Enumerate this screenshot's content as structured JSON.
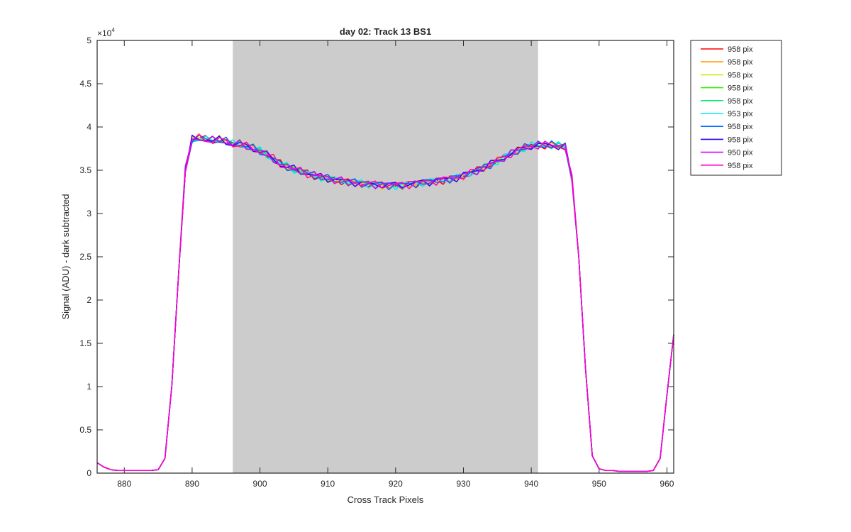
{
  "chart_data": {
    "type": "line",
    "title": "day 02: Track 13  BS1",
    "xlabel": "Cross Track Pixels",
    "ylabel": "Signal (ADU) - dark subtracted",
    "y_multiplier_label": "×10",
    "y_multiplier_exponent": "4",
    "xlim": [
      876,
      961
    ],
    "ylim": [
      0,
      5
    ],
    "x_ticks": [
      880,
      890,
      900,
      910,
      920,
      930,
      940,
      950,
      960
    ],
    "y_ticks": [
      0,
      0.5,
      1,
      1.5,
      2,
      2.5,
      3,
      3.5,
      4,
      4.5,
      5
    ],
    "y_tick_labels": [
      "0",
      "0.5",
      "1",
      "1.5",
      "2",
      "2.5",
      "3",
      "3.5",
      "4",
      "4.5",
      "5"
    ],
    "shaded_region": {
      "x_start": 896,
      "x_end": 941,
      "color": "#cccccc"
    },
    "legend_position": "outside-top-right",
    "x": [
      876,
      877,
      878,
      879,
      880,
      881,
      882,
      883,
      884,
      885,
      886,
      887,
      888,
      889,
      890,
      891,
      892,
      893,
      894,
      895,
      896,
      897,
      898,
      899,
      900,
      901,
      902,
      903,
      904,
      905,
      906,
      907,
      908,
      909,
      910,
      911,
      912,
      913,
      914,
      915,
      916,
      917,
      918,
      919,
      920,
      921,
      922,
      923,
      924,
      925,
      926,
      927,
      928,
      929,
      930,
      931,
      932,
      933,
      934,
      935,
      936,
      937,
      938,
      939,
      940,
      941,
      942,
      943,
      944,
      945,
      946,
      947,
      948,
      949,
      950,
      951,
      952,
      953,
      954,
      955,
      956,
      957,
      958,
      959,
      960,
      961
    ],
    "base_values": [
      0.12,
      0.07,
      0.04,
      0.03,
      0.03,
      0.03,
      0.03,
      0.03,
      0.03,
      0.04,
      0.17,
      1.0,
      2.3,
      3.5,
      3.85,
      3.87,
      3.86,
      3.84,
      3.85,
      3.83,
      3.8,
      3.8,
      3.78,
      3.75,
      3.72,
      3.68,
      3.63,
      3.57,
      3.54,
      3.51,
      3.49,
      3.46,
      3.44,
      3.42,
      3.41,
      3.39,
      3.38,
      3.37,
      3.36,
      3.35,
      3.34,
      3.34,
      3.33,
      3.33,
      3.33,
      3.33,
      3.34,
      3.35,
      3.36,
      3.37,
      3.38,
      3.39,
      3.4,
      3.42,
      3.44,
      3.47,
      3.5,
      3.53,
      3.57,
      3.61,
      3.65,
      3.69,
      3.73,
      3.76,
      3.78,
      3.79,
      3.79,
      3.79,
      3.78,
      3.77,
      3.4,
      2.5,
      1.2,
      0.2,
      0.05,
      0.03,
      0.03,
      0.02,
      0.02,
      0.02,
      0.02,
      0.02,
      0.03,
      0.17,
      0.9,
      1.6
    ],
    "series": [
      {
        "name": "958 pix",
        "color": "#ff0000",
        "phase": 0.0
      },
      {
        "name": "958 pix",
        "color": "#ff9900",
        "phase": 1.1
      },
      {
        "name": "958 pix",
        "color": "#ccee00",
        "phase": 2.3
      },
      {
        "name": "958 pix",
        "color": "#33ee00",
        "phase": 3.7
      },
      {
        "name": "958 pix",
        "color": "#00ee66",
        "phase": 4.4
      },
      {
        "name": "953 pix",
        "color": "#00eeee",
        "phase": 5.2
      },
      {
        "name": "958 pix",
        "color": "#0066ff",
        "phase": 0.6
      },
      {
        "name": "958 pix",
        "color": "#3300ff",
        "phase": 2.9
      },
      {
        "name": "950 pix",
        "color": "#cc00ff",
        "phase": 4.0
      },
      {
        "name": "958 pix",
        "color": "#ff00cc",
        "phase": 1.7
      }
    ]
  }
}
